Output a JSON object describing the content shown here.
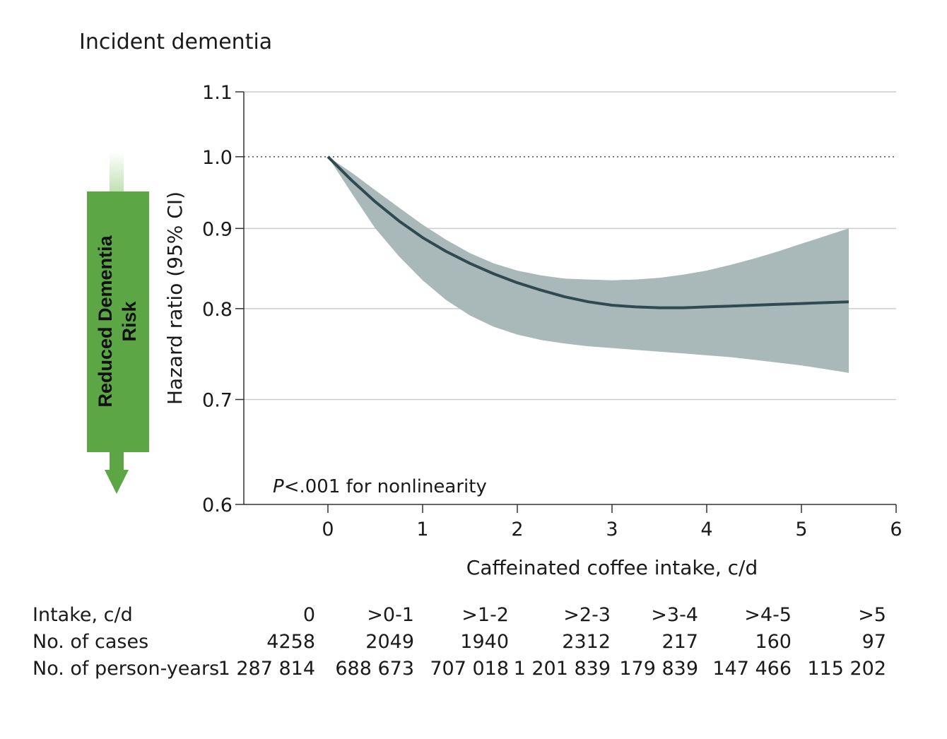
{
  "chart_data": {
    "type": "line",
    "title": "Incident dementia",
    "xlabel": "Caffeinated coffee intake, c/d",
    "ylabel": "Hazard ratio (95% CI)",
    "xlim": [
      -0.9,
      6
    ],
    "ylim": [
      0.6,
      1.1
    ],
    "y_scale": "log",
    "x_ticks": [
      0,
      1,
      2,
      3,
      4,
      5,
      6
    ],
    "x_tick_labels": [
      "0",
      "1",
      "2",
      "3",
      "4",
      "5",
      "6"
    ],
    "y_ticks": [
      0.6,
      0.7,
      0.8,
      0.9,
      1.0,
      1.1
    ],
    "y_tick_labels": [
      "0.6",
      "0.7",
      "0.8",
      "0.9",
      "1.0",
      "1.1"
    ],
    "reference_line": 1.0,
    "gridlines": true,
    "series": [
      {
        "name": "Hazard ratio",
        "x": [
          0,
          0.25,
          0.5,
          0.75,
          1.0,
          1.25,
          1.5,
          1.75,
          2.0,
          2.25,
          2.5,
          2.75,
          3.0,
          3.25,
          3.5,
          3.75,
          4.0,
          4.25,
          4.5,
          4.75,
          5.0,
          5.25,
          5.5
        ],
        "hr": [
          1.0,
          0.966,
          0.936,
          0.91,
          0.888,
          0.87,
          0.855,
          0.842,
          0.831,
          0.822,
          0.814,
          0.808,
          0.804,
          0.802,
          0.801,
          0.801,
          0.802,
          0.803,
          0.804,
          0.805,
          0.806,
          0.807,
          0.808
        ],
        "ci_lower": [
          1.0,
          0.948,
          0.9,
          0.864,
          0.834,
          0.81,
          0.792,
          0.779,
          0.77,
          0.764,
          0.76,
          0.757,
          0.755,
          0.753,
          0.751,
          0.749,
          0.747,
          0.745,
          0.742,
          0.739,
          0.736,
          0.732,
          0.728
        ],
        "ci_upper": [
          1.0,
          0.977,
          0.952,
          0.928,
          0.905,
          0.885,
          0.868,
          0.855,
          0.846,
          0.84,
          0.836,
          0.835,
          0.834,
          0.835,
          0.837,
          0.841,
          0.846,
          0.853,
          0.861,
          0.87,
          0.88,
          0.89,
          0.9
        ]
      }
    ],
    "annotation": {
      "italic": "P",
      "text": "<.001 for nonlinearity"
    },
    "side_badge": "Reduced Dementia Risk",
    "colors": {
      "line": "#2f4a50",
      "band": "#a9b8b8",
      "arrow": "#5ca645",
      "arrow_fade": "#e6f1e0",
      "grid": "#cccccc",
      "axis": "#333333"
    }
  },
  "risk_table": {
    "rows": [
      {
        "label": "Intake, c/d",
        "values": [
          "0",
          ">0-1",
          ">1-2",
          ">2-3",
          ">3-4",
          ">4-5",
          ">5"
        ]
      },
      {
        "label": "No. of cases",
        "values": [
          "4258",
          "2049",
          "1940",
          "2312",
          "217",
          "160",
          "97"
        ]
      },
      {
        "label": "No. of person-years",
        "values": [
          "1 287 814",
          "688 673",
          "707 018",
          "1 201 839",
          "179 839",
          "147 466",
          "115 202"
        ]
      }
    ]
  }
}
